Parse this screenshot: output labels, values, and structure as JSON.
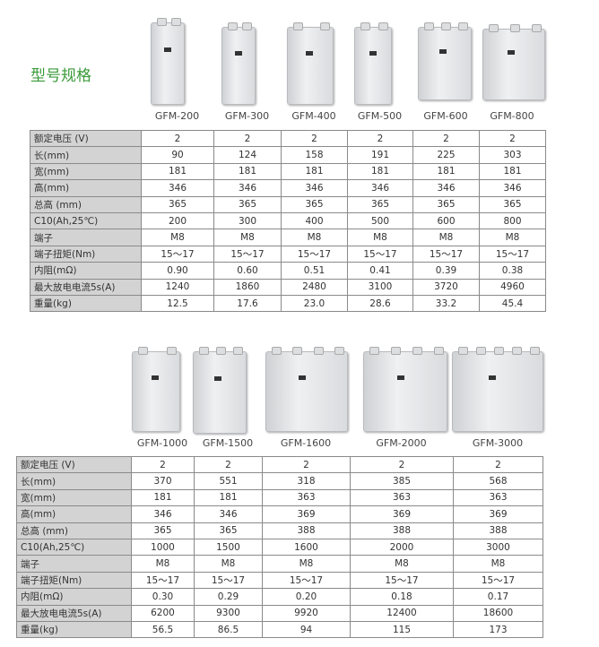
{
  "title": "型号规格",
  "row_labels": [
    "额定电压 (V)",
    "长(mm)",
    "宽(mm)",
    "高(mm)",
    "总高 (mm)",
    "C10(Ah,25℃)",
    "端子",
    "端子扭矩(Nm)",
    "内阻(mΩ)",
    "最大放电电流5s(A)",
    "重量(kg)"
  ],
  "table1": {
    "models": [
      "GFM-200",
      "GFM-300",
      "GFM-400",
      "GFM-500",
      "GFM-600",
      "GFM-800"
    ],
    "rows": [
      [
        "2",
        "2",
        "2",
        "2",
        "2",
        "2"
      ],
      [
        "90",
        "124",
        "158",
        "191",
        "225",
        "303"
      ],
      [
        "181",
        "181",
        "181",
        "181",
        "181",
        "181"
      ],
      [
        "346",
        "346",
        "346",
        "346",
        "346",
        "346"
      ],
      [
        "365",
        "365",
        "365",
        "365",
        "365",
        "365"
      ],
      [
        "200",
        "300",
        "400",
        "500",
        "600",
        "800"
      ],
      [
        "M8",
        "M8",
        "M8",
        "M8",
        "M8",
        "M8"
      ],
      [
        "15～17",
        "15～17",
        "15～17",
        "15～17",
        "15～17",
        "15～17"
      ],
      [
        "0.90",
        "0.60",
        "0.51",
        "0.41",
        "0.39",
        "0.38"
      ],
      [
        "1240",
        "1860",
        "2480",
        "3100",
        "3720",
        "4960"
      ],
      [
        "12.5",
        "17.6",
        "23.0",
        "28.6",
        "33.2",
        "45.4"
      ]
    ]
  },
  "table2": {
    "models": [
      "GFM-1000",
      "GFM-1500",
      "GFM-1600",
      "GFM-2000",
      "GFM-3000"
    ],
    "rows": [
      [
        "2",
        "2",
        "2",
        "2",
        "2"
      ],
      [
        "370",
        "551",
        "318",
        "385",
        "568"
      ],
      [
        "181",
        "181",
        "363",
        "363",
        "363"
      ],
      [
        "346",
        "346",
        "369",
        "369",
        "369"
      ],
      [
        "365",
        "365",
        "388",
        "388",
        "388"
      ],
      [
        "1000",
        "1500",
        "1600",
        "2000",
        "3000"
      ],
      [
        "M8",
        "M8",
        "M8",
        "M8",
        "M8"
      ],
      [
        "15～17",
        "15～17",
        "15～17",
        "15～17",
        "15～17"
      ],
      [
        "0.30",
        "0.29",
        "0.20",
        "0.18",
        "0.17"
      ],
      [
        "6200",
        "9300",
        "9920",
        "12400",
        "18600"
      ],
      [
        "56.5",
        "86.5",
        "94",
        "115",
        "173"
      ]
    ]
  }
}
